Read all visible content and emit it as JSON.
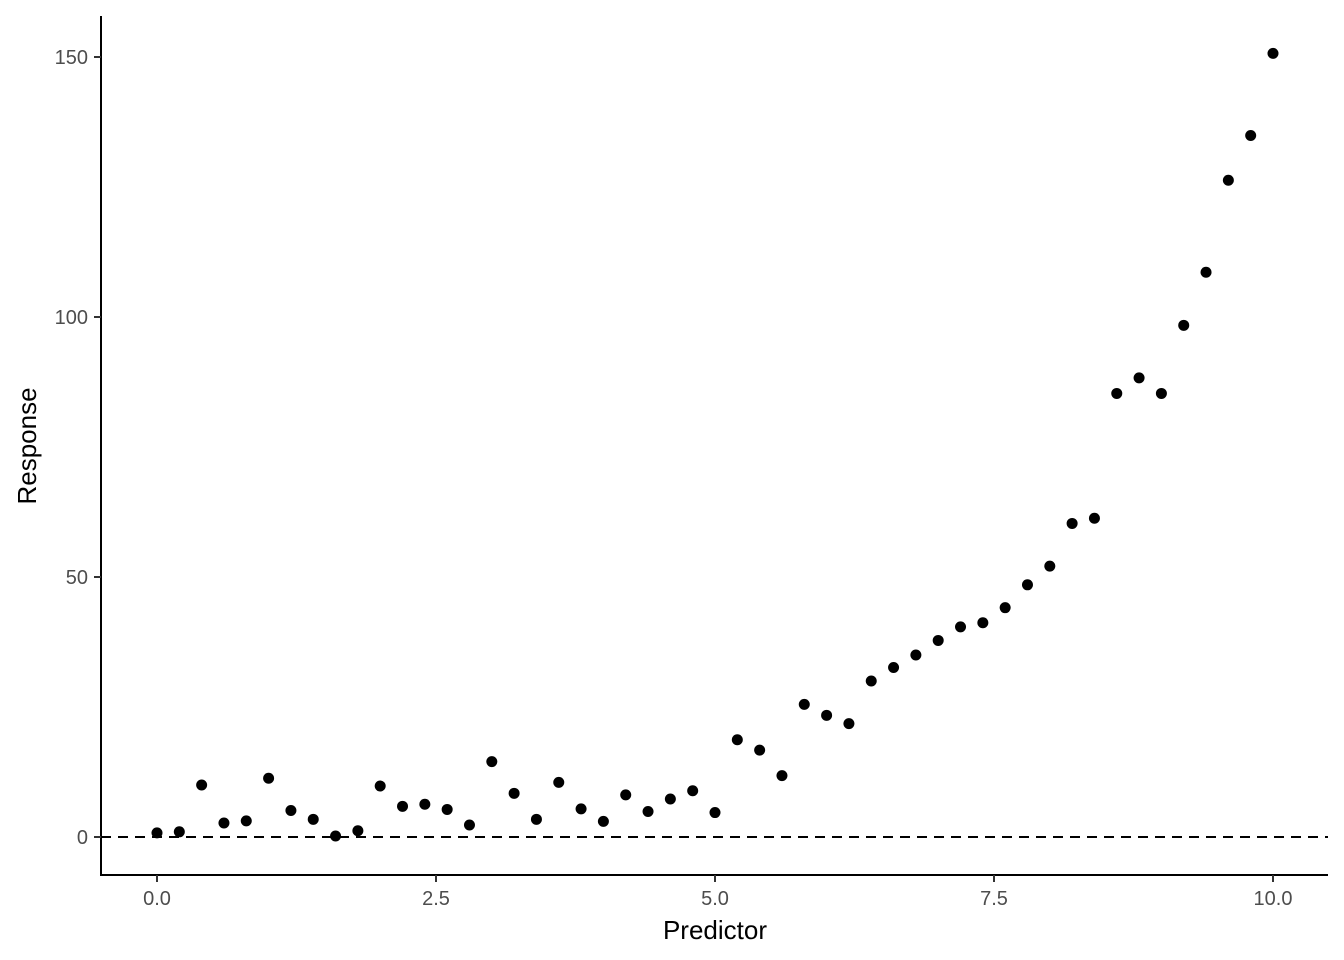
{
  "chart_data": {
    "type": "scatter",
    "title": "",
    "xlabel": "Predictor",
    "ylabel": "Response",
    "xlim": [
      -0.5,
      10.25
    ],
    "ylim": [
      -7.5,
      158
    ],
    "xticks": [
      0,
      2.5,
      5,
      7.5,
      10
    ],
    "xtick_labels": [
      "0.0",
      "2.5",
      "5.0",
      "7.5",
      "10.0"
    ],
    "yticks": [
      0,
      50,
      100,
      150
    ],
    "ytick_labels": [
      "0",
      "50",
      "100",
      "150"
    ],
    "grid": false,
    "reference_line": {
      "y": 0,
      "style": "dashed"
    },
    "series": [
      {
        "name": "Response",
        "x": [
          0.0,
          0.2,
          0.4,
          0.6,
          0.8,
          1.0,
          1.2,
          1.4,
          1.6,
          1.8,
          2.0,
          2.2,
          2.4,
          2.6,
          2.8,
          3.0,
          3.2,
          3.4,
          3.6,
          3.8,
          4.0,
          4.2,
          4.4,
          4.6,
          4.8,
          5.0,
          5.2,
          5.4,
          5.6,
          5.8,
          6.0,
          6.2,
          6.4,
          6.6,
          6.8,
          7.0,
          7.2,
          7.4,
          7.6,
          7.8,
          8.0,
          8.2,
          8.4,
          8.6,
          8.8,
          9.0,
          9.2,
          9.4,
          9.6,
          9.8,
          10.0
        ],
        "y": [
          0.8,
          1.0,
          10.0,
          2.7,
          3.1,
          11.3,
          5.1,
          3.4,
          0.2,
          1.2,
          9.8,
          5.9,
          6.3,
          5.3,
          2.3,
          14.5,
          8.4,
          3.4,
          10.5,
          5.4,
          3.0,
          8.1,
          4.9,
          7.3,
          8.9,
          4.7,
          18.7,
          16.7,
          11.8,
          25.5,
          23.4,
          21.8,
          30.0,
          32.6,
          35.0,
          37.8,
          40.4,
          41.2,
          44.1,
          48.5,
          52.1,
          60.3,
          61.3,
          85.3,
          88.3,
          85.3,
          98.4,
          108.6,
          126.3,
          134.9,
          150.7
        ]
      }
    ]
  }
}
